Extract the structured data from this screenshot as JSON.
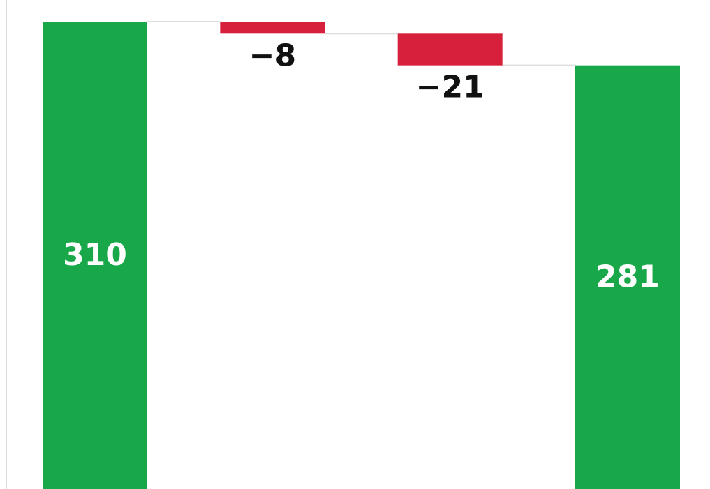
{
  "chart_data": {
    "type": "waterfall",
    "categories": [
      "",
      "",
      "",
      ""
    ],
    "values": [
      310,
      -8,
      -21,
      281
    ],
    "kinds": [
      "total",
      "delta",
      "delta",
      "total"
    ],
    "labels": [
      "310",
      "−8",
      "−21",
      "281"
    ],
    "ylim": [
      0,
      310
    ],
    "grid": false,
    "legend": "none",
    "title": "",
    "xlabel": "",
    "ylabel": ""
  },
  "colors": {
    "total": "#18a84a",
    "decrease": "#d7213c",
    "connector": "#dddddd",
    "axis": "#dddddd",
    "label_on_bar": "#ffffff",
    "label_outside": "#111111"
  }
}
